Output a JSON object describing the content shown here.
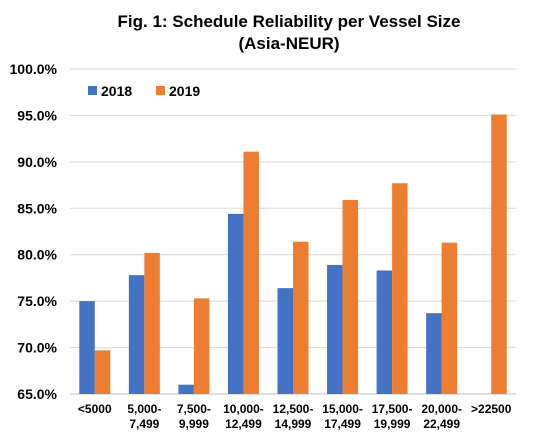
{
  "chart_data": {
    "type": "bar",
    "title": "Fig. 1: Schedule Reliability per Vessel Size",
    "subtitle": "(Asia-NEUR)",
    "xlabel": "",
    "ylabel": "",
    "ylim": [
      65,
      100
    ],
    "yticks": [
      "65.0%",
      "70.0%",
      "75.0%",
      "80.0%",
      "85.0%",
      "90.0%",
      "95.0%",
      "100.0%"
    ],
    "ytick_values": [
      65,
      70,
      75,
      80,
      85,
      90,
      95,
      100
    ],
    "grid": true,
    "legend_position": "top-left",
    "categories": [
      [
        "<5000"
      ],
      [
        "5,000-",
        "7,499"
      ],
      [
        "7,500-",
        "9,999"
      ],
      [
        "10,000-",
        "12,499"
      ],
      [
        "12,500-",
        "14,999"
      ],
      [
        "15,000-",
        "17,499"
      ],
      [
        "17,500-",
        "19,999"
      ],
      [
        "20,000-",
        "22,499"
      ],
      [
        ">22500"
      ]
    ],
    "series": [
      {
        "name": "2018",
        "color": "#4472c4",
        "values": [
          75.0,
          77.8,
          66.0,
          84.4,
          76.4,
          78.9,
          78.3,
          73.7,
          null
        ]
      },
      {
        "name": "2019",
        "color": "#ed7d31",
        "values": [
          69.7,
          80.2,
          75.3,
          91.1,
          81.4,
          85.9,
          87.7,
          81.3,
          95.1
        ]
      }
    ]
  }
}
